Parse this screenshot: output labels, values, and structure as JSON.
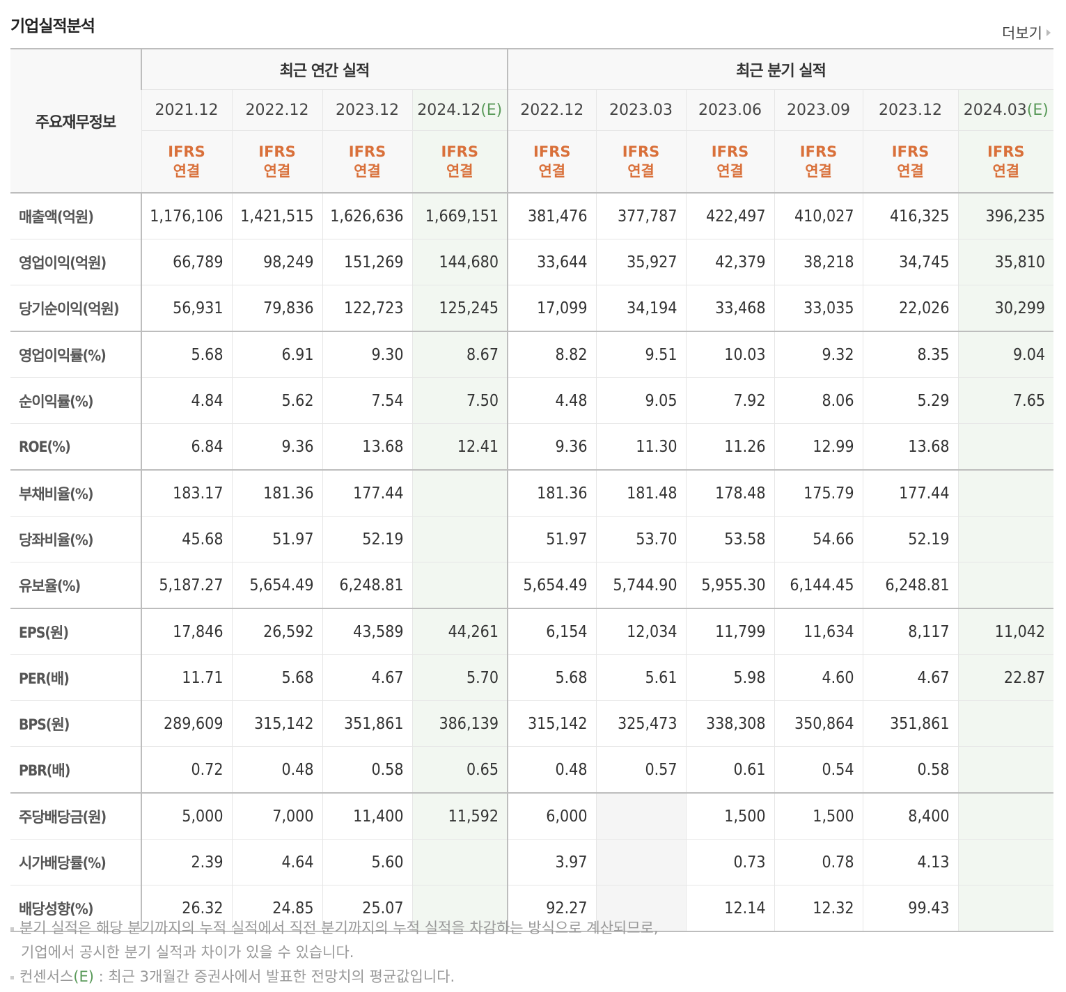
{
  "header": {
    "title": "기업실적분석",
    "more_label": "더보기"
  },
  "table": {
    "label_header": "주요재무정보",
    "groups": [
      {
        "label": "최근 연간 실적"
      },
      {
        "label": "최근 분기 실적"
      }
    ],
    "periods": [
      {
        "date": "2021.12",
        "est": ""
      },
      {
        "date": "2022.12",
        "est": ""
      },
      {
        "date": "2023.12",
        "est": ""
      },
      {
        "date": "2024.12",
        "est": "(E)"
      },
      {
        "date": "2022.12",
        "est": ""
      },
      {
        "date": "2023.03",
        "est": ""
      },
      {
        "date": "2023.06",
        "est": ""
      },
      {
        "date": "2023.09",
        "est": ""
      },
      {
        "date": "2023.12",
        "est": ""
      },
      {
        "date": "2024.03",
        "est": "(E)"
      }
    ],
    "standard_line1": "IFRS",
    "standard_line2": "연결",
    "rows": [
      {
        "label": "매출액(억원)",
        "values": [
          "1,176,106",
          "1,421,515",
          "1,626,636",
          "1,669,151",
          "381,476",
          "377,787",
          "422,497",
          "410,027",
          "416,325",
          "396,235"
        ]
      },
      {
        "label": "영업이익(억원)",
        "values": [
          "66,789",
          "98,249",
          "151,269",
          "144,680",
          "33,644",
          "35,927",
          "42,379",
          "38,218",
          "34,745",
          "35,810"
        ]
      },
      {
        "label": "당기순이익(억원)",
        "values": [
          "56,931",
          "79,836",
          "122,723",
          "125,245",
          "17,099",
          "34,194",
          "33,468",
          "33,035",
          "22,026",
          "30,299"
        ]
      },
      {
        "label": "영업이익률(%)",
        "values": [
          "5.68",
          "6.91",
          "9.30",
          "8.67",
          "8.82",
          "9.51",
          "10.03",
          "9.32",
          "8.35",
          "9.04"
        ]
      },
      {
        "label": "순이익률(%)",
        "values": [
          "4.84",
          "5.62",
          "7.54",
          "7.50",
          "4.48",
          "9.05",
          "7.92",
          "8.06",
          "5.29",
          "7.65"
        ]
      },
      {
        "label": "ROE(%)",
        "values": [
          "6.84",
          "9.36",
          "13.68",
          "12.41",
          "9.36",
          "11.30",
          "11.26",
          "12.99",
          "13.68",
          ""
        ]
      },
      {
        "label": "부채비율(%)",
        "values": [
          "183.17",
          "181.36",
          "177.44",
          "",
          "181.36",
          "181.48",
          "178.48",
          "175.79",
          "177.44",
          ""
        ]
      },
      {
        "label": "당좌비율(%)",
        "values": [
          "45.68",
          "51.97",
          "52.19",
          "",
          "51.97",
          "53.70",
          "53.58",
          "54.66",
          "52.19",
          ""
        ]
      },
      {
        "label": "유보율(%)",
        "values": [
          "5,187.27",
          "5,654.49",
          "6,248.81",
          "",
          "5,654.49",
          "5,744.90",
          "5,955.30",
          "6,144.45",
          "6,248.81",
          ""
        ]
      },
      {
        "label": "EPS(원)",
        "values": [
          "17,846",
          "26,592",
          "43,589",
          "44,261",
          "6,154",
          "12,034",
          "11,799",
          "11,634",
          "8,117",
          "11,042"
        ]
      },
      {
        "label": "PER(배)",
        "values": [
          "11.71",
          "5.68",
          "4.67",
          "5.70",
          "5.68",
          "5.61",
          "5.98",
          "4.60",
          "4.67",
          "22.87"
        ]
      },
      {
        "label": "BPS(원)",
        "values": [
          "289,609",
          "315,142",
          "351,861",
          "386,139",
          "315,142",
          "325,473",
          "338,308",
          "350,864",
          "351,861",
          ""
        ]
      },
      {
        "label": "PBR(배)",
        "values": [
          "0.72",
          "0.48",
          "0.58",
          "0.65",
          "0.48",
          "0.57",
          "0.61",
          "0.54",
          "0.58",
          ""
        ]
      },
      {
        "label": "주당배당금(원)",
        "values": [
          "5,000",
          "7,000",
          "11,400",
          "11,592",
          "6,000",
          "",
          "1,500",
          "1,500",
          "8,400",
          ""
        ]
      },
      {
        "label": "시가배당률(%)",
        "values": [
          "2.39",
          "4.64",
          "5.60",
          "",
          "3.97",
          "",
          "0.73",
          "0.78",
          "4.13",
          ""
        ]
      },
      {
        "label": "배당성향(%)",
        "values": [
          "26.32",
          "24.85",
          "25.07",
          "",
          "92.27",
          "",
          "12.14",
          "12.32",
          "99.43",
          ""
        ]
      }
    ]
  },
  "notes": {
    "note1_line1": "분기 실적은 해당 분기까지의 누적 실적에서 직전 분기까지의 누적 실적을 차감하는 방식으로 계산되므로,",
    "note1_line2": "기업에서 공시한 분기 실적과 차이가 있을 수 있습니다.",
    "note2_prefix": "컨센서스",
    "note2_mark": "(E)",
    "note2_suffix": " : 최근 3개월간 증권사에서 발표한 전망치의 평균값입니다."
  },
  "colors": {
    "standard_text": "#d9703a",
    "estimate_bg": "#f2f7f1",
    "estimate_mark": "#5a9a5a",
    "border_strong": "#bdbdbd",
    "border_light": "#e6e6e6"
  }
}
